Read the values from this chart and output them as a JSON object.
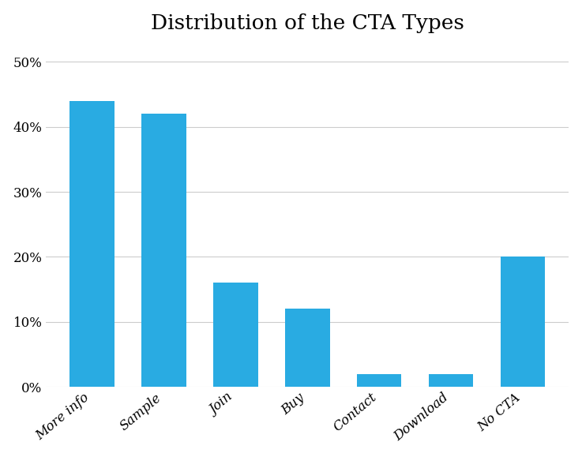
{
  "title": "Distribution of the CTA Types",
  "categories": [
    "More info",
    "Sample",
    "Join",
    "Buy",
    "Contact",
    "Download",
    "No CTA"
  ],
  "values": [
    44,
    42,
    16,
    12,
    2,
    2,
    20
  ],
  "bar_color": "#29ABE2",
  "background_color": "#ffffff",
  "ylim": [
    0,
    52
  ],
  "yticks": [
    0,
    10,
    20,
    30,
    40,
    50
  ],
  "ytick_labels": [
    "0%",
    "10%",
    "20%",
    "30%",
    "40%",
    "50%"
  ],
  "title_fontsize": 19,
  "tick_fontsize": 12,
  "xtick_fontsize": 12,
  "grid_color": "#cccccc",
  "bar_width": 0.62
}
